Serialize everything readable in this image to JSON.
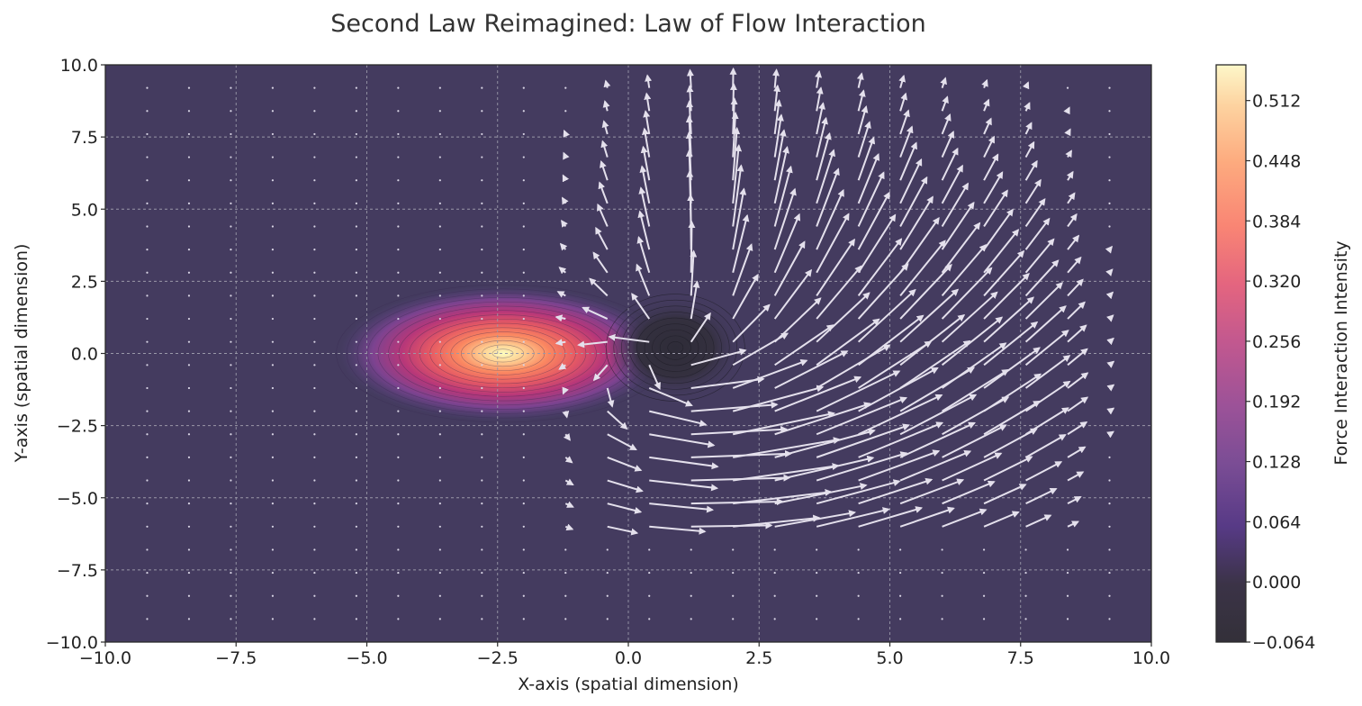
{
  "chart_data": {
    "type": "heatmap",
    "subtype": "filled-contour with quiver field",
    "title": "Second Law Reimagined: Law of Flow Interaction",
    "xlabel": "X-axis (spatial dimension)",
    "ylabel": "Y-axis (spatial dimension)",
    "xlim": [
      -10,
      10
    ],
    "ylim": [
      -10,
      10
    ],
    "x_ticks": [
      -10,
      -7.5,
      -5,
      -2.5,
      0,
      2.5,
      5,
      7.5,
      10
    ],
    "y_ticks": [
      -10,
      -7.5,
      -5,
      -2.5,
      0,
      2.5,
      5,
      7.5,
      10
    ],
    "x_tick_labels": [
      "−10.0",
      "−7.5",
      "−5.0",
      "−2.5",
      "0.0",
      "2.5",
      "5.0",
      "7.5",
      "10.0"
    ],
    "y_tick_labels": [
      "−10.0",
      "−7.5",
      "−5.0",
      "−2.5",
      "0.0",
      "2.5",
      "5.0",
      "7.5",
      "10.0"
    ],
    "grid": true,
    "colormap": "magma",
    "colorbar": {
      "label": "Force Interaction Intensity",
      "range": [
        -0.064,
        0.55
      ],
      "ticks": [
        -0.064,
        0.0,
        0.064,
        0.128,
        0.192,
        0.256,
        0.32,
        0.384,
        0.448,
        0.512
      ],
      "tick_labels": [
        "−0.064",
        "0.000",
        "0.064",
        "0.128",
        "0.192",
        "0.256",
        "0.320",
        "0.384",
        "0.448",
        "0.512"
      ]
    },
    "intensity_features": [
      {
        "kind": "peak",
        "x": -2.4,
        "y": 0.0,
        "value": 0.55,
        "sigma_x": 1.2,
        "sigma_y": 0.9
      },
      {
        "kind": "trough",
        "x": 0.9,
        "y": 0.2,
        "value": -0.064,
        "sigma_x": 0.5,
        "sigma_y": 0.7
      }
    ],
    "quiver": {
      "grid_spacing": 0.8,
      "color": "#e0dce8",
      "source": {
        "x": 0.9,
        "y": 0.2
      },
      "active_region": {
        "x_from": -1.5,
        "x_to": 9.5,
        "y_from": -6,
        "y_to": 10
      },
      "description_of_flow": "vectors emanate from near x≈1 and swirl upward/rightward, strongest for x in 2..7"
    },
    "colors": {
      "background": "#443b5f",
      "grid": "#9a98a8",
      "arrows": "#e4e0ec",
      "dots": "#d8d4e4"
    }
  }
}
